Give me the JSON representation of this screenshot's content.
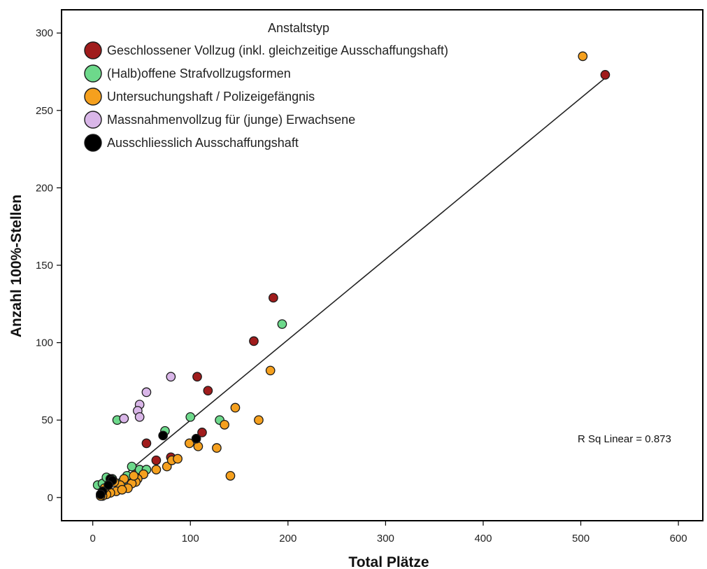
{
  "chart_data": {
    "type": "scatter",
    "xlabel": "Total Plätze",
    "ylabel": "Anzahl 100%-Stellen",
    "xlim": [
      -32,
      625
    ],
    "ylim": [
      -15,
      315
    ],
    "xticks": [
      0,
      100,
      200,
      300,
      400,
      500,
      600
    ],
    "yticks": [
      0,
      50,
      100,
      150,
      200,
      250,
      300
    ],
    "grid": false,
    "legend": {
      "title": "Anstaltstyp",
      "placement": "top-left"
    },
    "annotation": "R Sq Linear = 0.873",
    "fit_line": {
      "x": [
        8,
        525
      ],
      "y": [
        2,
        271
      ]
    },
    "series": [
      {
        "name": "Geschlossener Vollzug (inkl. gleichzeitige Ausschaffungshaft)",
        "color": "#a01c1c",
        "points": [
          [
            525,
            273
          ],
          [
            185,
            129
          ],
          [
            165,
            101
          ],
          [
            107,
            78
          ],
          [
            118,
            69
          ],
          [
            55,
            35
          ],
          [
            112,
            42
          ],
          [
            65,
            24
          ],
          [
            80,
            26
          ],
          [
            45,
            17
          ]
        ]
      },
      {
        "name": "(Halb)offene Strafvollzugsformen",
        "color": "#6dd98b",
        "points": [
          [
            194,
            112
          ],
          [
            100,
            52
          ],
          [
            130,
            50
          ],
          [
            25,
            50
          ],
          [
            74,
            43
          ],
          [
            5,
            8
          ],
          [
            10,
            9
          ],
          [
            14,
            13
          ],
          [
            40,
            20
          ],
          [
            48,
            18
          ],
          [
            55,
            18
          ],
          [
            30,
            10
          ],
          [
            20,
            12
          ],
          [
            35,
            14
          ]
        ]
      },
      {
        "name": "Untersuchungshaft / Polizeigefängnis",
        "color": "#f5a01e",
        "points": [
          [
            502,
            285
          ],
          [
            182,
            82
          ],
          [
            146,
            58
          ],
          [
            170,
            50
          ],
          [
            135,
            47
          ],
          [
            99,
            35
          ],
          [
            108,
            33
          ],
          [
            127,
            32
          ],
          [
            141,
            14
          ],
          [
            76,
            20
          ],
          [
            81,
            24
          ],
          [
            87,
            25
          ],
          [
            65,
            18
          ],
          [
            52,
            15
          ],
          [
            46,
            12
          ],
          [
            44,
            10
          ],
          [
            40,
            9
          ],
          [
            36,
            6
          ],
          [
            32,
            12
          ],
          [
            28,
            8
          ],
          [
            24,
            4
          ],
          [
            18,
            3
          ],
          [
            14,
            2
          ],
          [
            10,
            1
          ],
          [
            8,
            1
          ],
          [
            12,
            6
          ],
          [
            22,
            10
          ],
          [
            42,
            14
          ],
          [
            30,
            5
          ]
        ]
      },
      {
        "name": "Massnahmenvollzug für (junge) Erwachsene",
        "color": "#d9b6e8",
        "points": [
          [
            80,
            78
          ],
          [
            55,
            68
          ],
          [
            48,
            60
          ],
          [
            46,
            56
          ],
          [
            48,
            52
          ],
          [
            32,
            51
          ]
        ]
      },
      {
        "name": "Ausschliesslich Ausschaffungshaft",
        "color": "#000000",
        "points": [
          [
            72,
            40
          ],
          [
            106,
            38
          ],
          [
            18,
            12
          ],
          [
            20,
            11
          ],
          [
            16,
            8
          ],
          [
            10,
            4
          ],
          [
            8,
            2
          ]
        ]
      }
    ]
  }
}
